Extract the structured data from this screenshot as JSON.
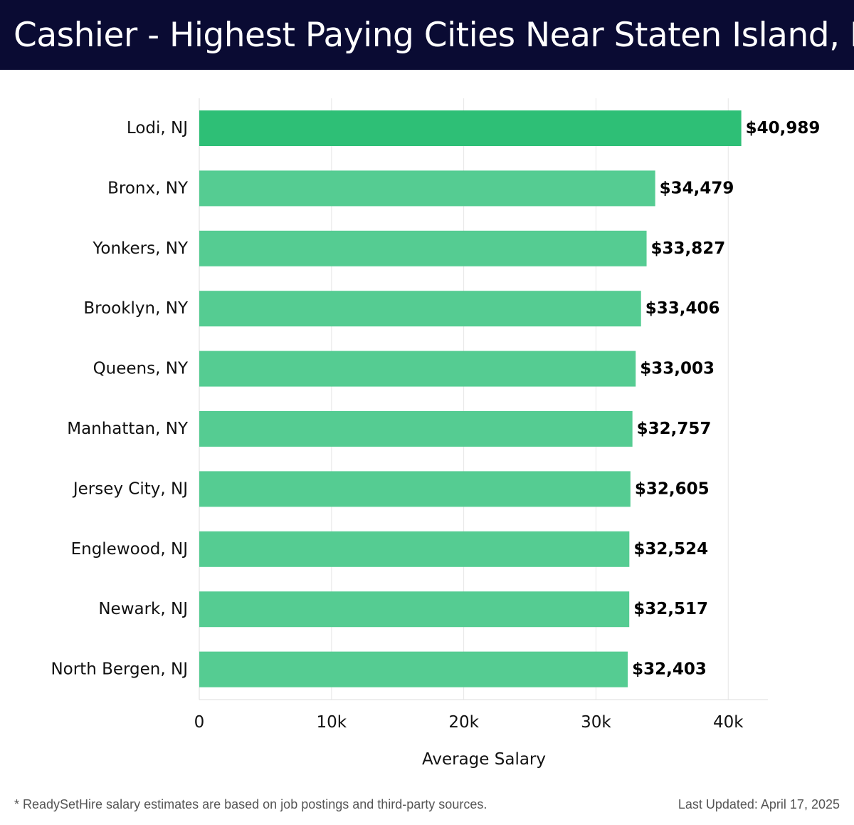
{
  "header": {
    "title": "Cashier - Highest Paying Cities Near Staten Island, NY"
  },
  "colors": {
    "header_bg": "#0a0b33",
    "top_bar": "#2ebf76",
    "bar": "#55cc92"
  },
  "chart_data": {
    "type": "bar",
    "orientation": "horizontal",
    "title": "Cashier - Highest Paying Cities Near Staten Island, NY",
    "xlabel": "Average Salary",
    "ylabel": "",
    "xlim": [
      0,
      43000
    ],
    "xticks": [
      0,
      10000,
      20000,
      30000,
      40000
    ],
    "xtick_labels": [
      "0",
      "10k",
      "20k",
      "30k",
      "40k"
    ],
    "grid": "vertical",
    "categories": [
      "Lodi, NJ",
      "Bronx, NY",
      "Yonkers, NY",
      "Brooklyn, NY",
      "Queens, NY",
      "Manhattan, NY",
      "Jersey City, NJ",
      "Englewood, NJ",
      "Newark, NJ",
      "North Bergen, NJ"
    ],
    "values": [
      40989,
      34479,
      33827,
      33406,
      33003,
      32757,
      32605,
      32524,
      32517,
      32403
    ],
    "data_labels": [
      "$40,989",
      "$34,479",
      "$33,827",
      "$33,406",
      "$33,003",
      "$32,757",
      "$32,605",
      "$32,524",
      "$32,517",
      "$32,403"
    ]
  },
  "footer": {
    "note": "* ReadySetHire salary estimates are based on job postings and third-party sources.",
    "updated": "Last Updated: April 17, 2025"
  }
}
